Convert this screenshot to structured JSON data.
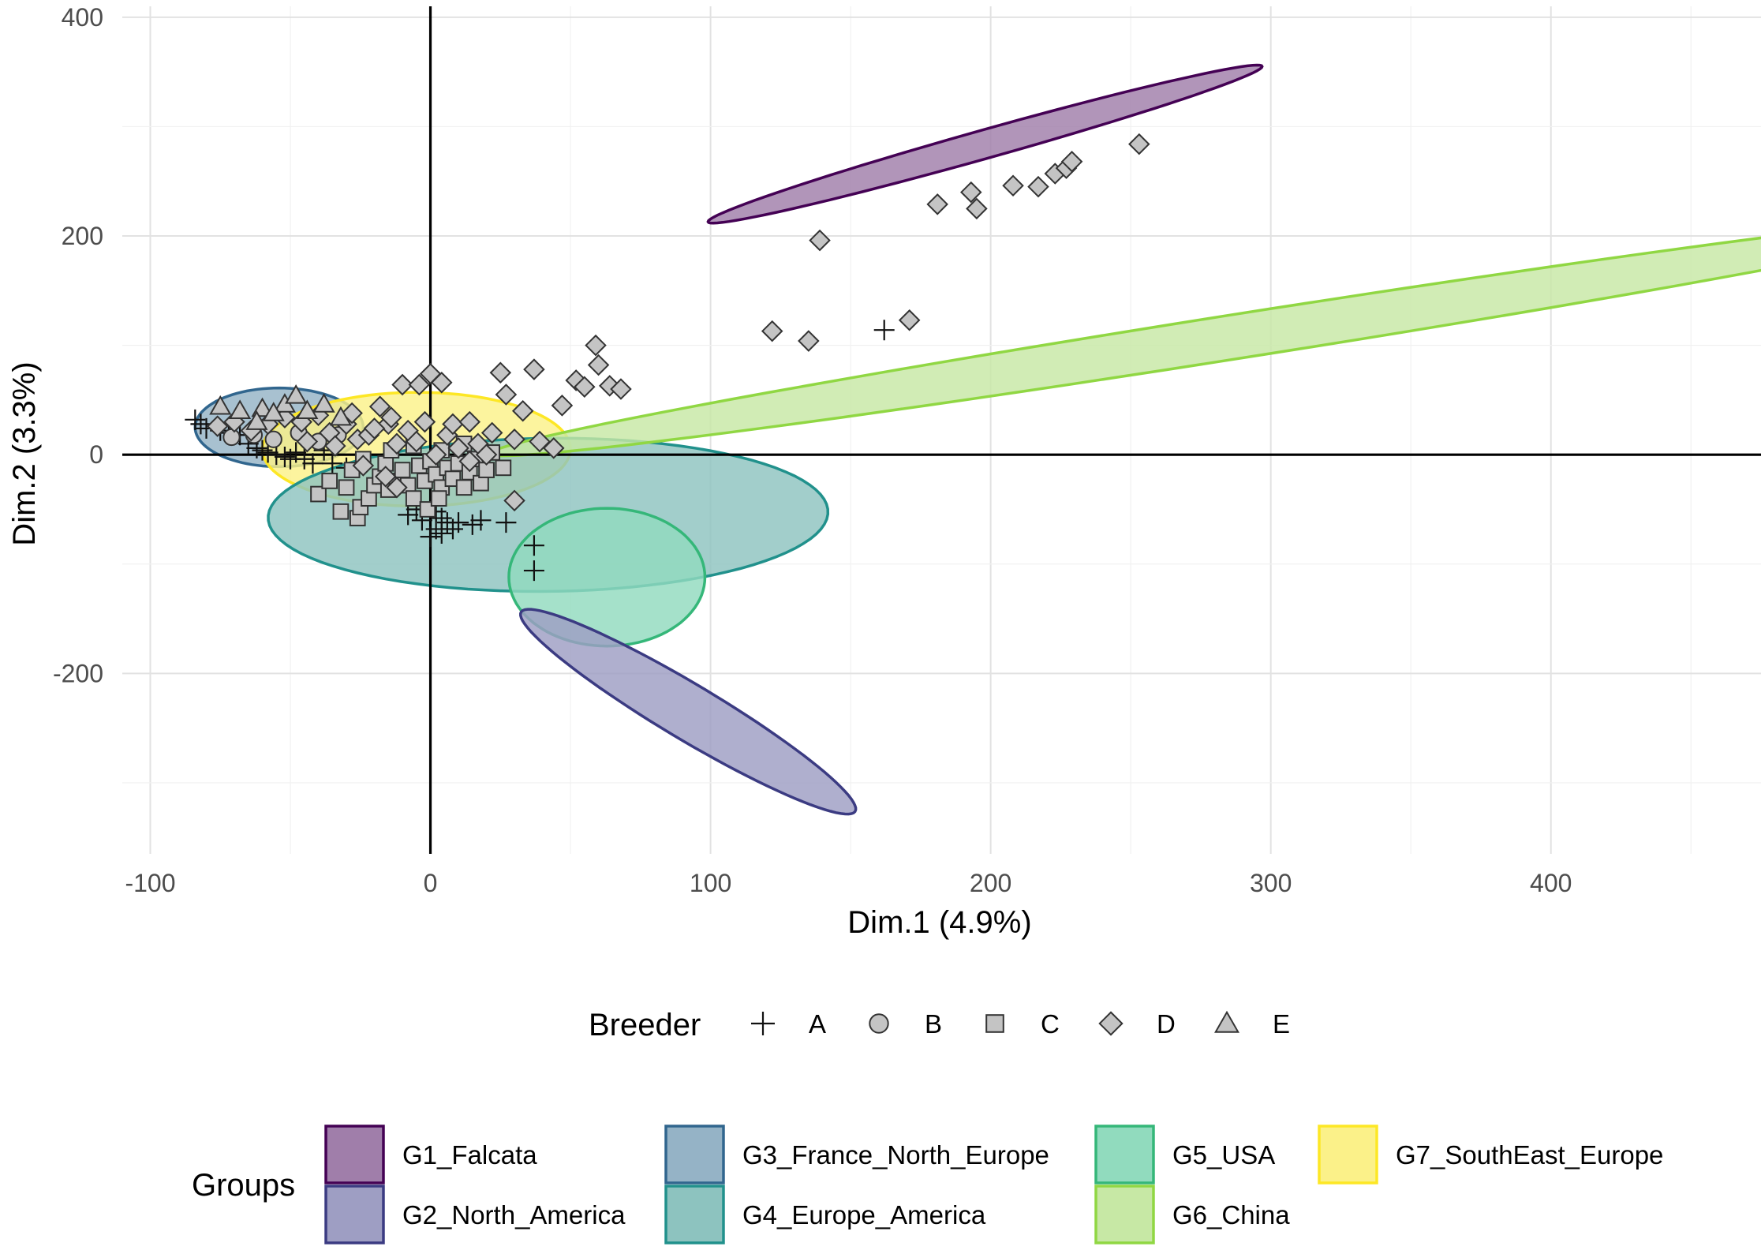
{
  "chart_data": {
    "type": "scatter",
    "title": "",
    "xlabel": "Dim.1 (4.9%)",
    "ylabel": "Dim.2 (3.3%)",
    "xlim": [
      -110,
      475
    ],
    "ylim": [
      -365,
      410
    ],
    "x_ticks": [
      -100,
      0,
      100,
      200,
      300,
      400
    ],
    "x_tick_labels": [
      "-100",
      "0",
      "100",
      "200",
      "300",
      "400"
    ],
    "y_ticks": [
      -200,
      0,
      200,
      400
    ],
    "y_tick_labels": [
      "-200",
      "0",
      "200",
      "400"
    ],
    "grid": true,
    "reference_lines": {
      "x": 0,
      "y": 0
    },
    "shape_legend": {
      "title": "Breeder",
      "position": "bottom",
      "entries": [
        {
          "label": "A",
          "shape": "plus"
        },
        {
          "label": "B",
          "shape": "circle"
        },
        {
          "label": "C",
          "shape": "square"
        },
        {
          "label": "D",
          "shape": "diamond"
        },
        {
          "label": "E",
          "shape": "triangle"
        }
      ]
    },
    "group_legend": {
      "title": "Groups",
      "position": "bottom",
      "entries": [
        {
          "label": "G1_Falcata",
          "fill": "#a07eaa",
          "stroke": "#440154"
        },
        {
          "label": "G2_North_America",
          "fill": "#9e9ec3",
          "stroke": "#3b3b82"
        },
        {
          "label": "G3_France_North_Europe",
          "fill": "#95b3c6",
          "stroke": "#31668e"
        },
        {
          "label": "G4_Europe_America",
          "fill": "#8dc3bf",
          "stroke": "#21918c"
        },
        {
          "label": "G5_USA",
          "fill": "#91dbbe",
          "stroke": "#35b779"
        },
        {
          "label": "G6_China",
          "fill": "#c7e8a5",
          "stroke": "#90d743"
        },
        {
          "label": "G7_SouthEast_Europe",
          "fill": "#fbf189",
          "stroke": "#fde725"
        }
      ]
    },
    "ellipses": [
      {
        "group": "G3_France_North_Europe",
        "cx": -54,
        "cy": 25,
        "rx": 30,
        "ry": 36,
        "angle_deg": 0
      },
      {
        "group": "G7_SouthEast_Europe",
        "cx": -5,
        "cy": 5,
        "rx": 55,
        "ry": 52,
        "angle_deg": 3
      },
      {
        "group": "G4_Europe_America",
        "cx": 42,
        "cy": -55,
        "rx": 100,
        "ry": 70,
        "angle_deg": 3
      },
      {
        "group": "G5_USA",
        "cx": 63,
        "cy": -112,
        "rx": 35,
        "ry": 63,
        "angle_deg": 0
      },
      {
        "group": "G2_North_America",
        "cx": 92,
        "cy": -235,
        "rx": 110,
        "ry": 16,
        "angle_deg": -58
      },
      {
        "group": "G1_Falcata",
        "cx": 198,
        "cy": 284,
        "rx": 122,
        "ry": 11,
        "angle_deg": 36
      },
      {
        "group": "G6_China",
        "cx": 290,
        "cy": 109,
        "rx": 290,
        "ry": 19,
        "angle_deg": 22
      }
    ],
    "series": [
      {
        "name": "A",
        "shape": "plus",
        "points": [
          [
            -84,
            32
          ],
          [
            -82,
            28
          ],
          [
            -80,
            24
          ],
          [
            -75,
            22
          ],
          [
            -72,
            20
          ],
          [
            -68,
            18
          ],
          [
            -65,
            10
          ],
          [
            -62,
            6
          ],
          [
            -60,
            4
          ],
          [
            -58,
            2
          ],
          [
            -55,
            0
          ],
          [
            -52,
            -2
          ],
          [
            -50,
            -4
          ],
          [
            -48,
            2
          ],
          [
            -45,
            -4
          ],
          [
            -42,
            -8
          ],
          [
            -38,
            4
          ],
          [
            -35,
            -8
          ],
          [
            -30,
            -12
          ],
          [
            -5,
            -50
          ],
          [
            -8,
            -55
          ],
          [
            -3,
            -60
          ],
          [
            2,
            -52
          ],
          [
            4,
            -58
          ],
          [
            6,
            -62
          ],
          [
            2,
            -68
          ],
          [
            0,
            -75
          ],
          [
            4,
            -72
          ],
          [
            8,
            -68
          ],
          [
            10,
            -62
          ],
          [
            15,
            -64
          ],
          [
            18,
            -60
          ],
          [
            27,
            -62
          ],
          [
            37,
            -83
          ],
          [
            37,
            -106
          ],
          [
            162,
            114
          ]
        ]
      },
      {
        "name": "B",
        "shape": "circle",
        "points": [
          [
            -71,
            16
          ],
          [
            -63,
            18
          ],
          [
            -56,
            14
          ],
          [
            -47,
            20
          ],
          [
            -40,
            12
          ],
          [
            -33,
            18
          ]
        ]
      },
      {
        "name": "C",
        "shape": "square",
        "points": [
          [
            -32,
            -52
          ],
          [
            -26,
            -58
          ],
          [
            -25,
            -48
          ],
          [
            -22,
            -40
          ],
          [
            -20,
            -28
          ],
          [
            -18,
            -20
          ],
          [
            -15,
            -32
          ],
          [
            -12,
            -24
          ],
          [
            -10,
            -14
          ],
          [
            -8,
            -28
          ],
          [
            -6,
            -40
          ],
          [
            -4,
            -10
          ],
          [
            -2,
            -24
          ],
          [
            0,
            -6
          ],
          [
            2,
            -18
          ],
          [
            4,
            -30
          ],
          [
            6,
            -12
          ],
          [
            8,
            -22
          ],
          [
            10,
            -8
          ],
          [
            12,
            -30
          ],
          [
            14,
            -16
          ],
          [
            16,
            -4
          ],
          [
            18,
            -26
          ],
          [
            20,
            -14
          ],
          [
            -40,
            -36
          ],
          [
            -36,
            -24
          ],
          [
            -30,
            -30
          ],
          [
            -28,
            -14
          ],
          [
            -24,
            -4
          ],
          [
            -16,
            -8
          ],
          [
            -14,
            4
          ],
          [
            -6,
            8
          ],
          [
            4,
            4
          ],
          [
            12,
            10
          ],
          [
            22,
            2
          ],
          [
            26,
            -12
          ],
          [
            -1,
            -50
          ],
          [
            3,
            -40
          ]
        ]
      },
      {
        "name": "D",
        "shape": "diamond",
        "points": [
          [
            -76,
            26
          ],
          [
            -70,
            30
          ],
          [
            -64,
            22
          ],
          [
            -58,
            28
          ],
          [
            -52,
            34
          ],
          [
            -46,
            30
          ],
          [
            -40,
            36
          ],
          [
            -36,
            20
          ],
          [
            -30,
            28
          ],
          [
            -26,
            14
          ],
          [
            -22,
            18
          ],
          [
            -18,
            44
          ],
          [
            -15,
            28
          ],
          [
            -12,
            10
          ],
          [
            -10,
            64
          ],
          [
            -8,
            22
          ],
          [
            -5,
            12
          ],
          [
            -4,
            64
          ],
          [
            0,
            74
          ],
          [
            2,
            0
          ],
          [
            4,
            66
          ],
          [
            6,
            18
          ],
          [
            10,
            6
          ],
          [
            14,
            -6
          ],
          [
            17,
            10
          ],
          [
            20,
            0
          ],
          [
            25,
            75
          ],
          [
            27,
            55
          ],
          [
            30,
            14
          ],
          [
            33,
            40
          ],
          [
            30,
            -42
          ],
          [
            37,
            78
          ],
          [
            39,
            12
          ],
          [
            44,
            6
          ],
          [
            47,
            45
          ],
          [
            52,
            68
          ],
          [
            55,
            62
          ],
          [
            59,
            100
          ],
          [
            60,
            82
          ],
          [
            64,
            63
          ],
          [
            68,
            60
          ],
          [
            -28,
            38
          ],
          [
            -20,
            24
          ],
          [
            -14,
            34
          ],
          [
            -2,
            30
          ],
          [
            8,
            28
          ],
          [
            22,
            20
          ],
          [
            -44,
            12
          ],
          [
            -34,
            8
          ],
          [
            -24,
            -10
          ],
          [
            -16,
            -20
          ],
          [
            -12,
            -30
          ],
          [
            14,
            30
          ],
          [
            122,
            113
          ],
          [
            135,
            104
          ],
          [
            171,
            123
          ],
          [
            139,
            196
          ],
          [
            181,
            229
          ],
          [
            193,
            240
          ],
          [
            195,
            225
          ],
          [
            208,
            246
          ],
          [
            217,
            245
          ],
          [
            223,
            257
          ],
          [
            227,
            262
          ],
          [
            229,
            268
          ],
          [
            253,
            284
          ]
        ]
      },
      {
        "name": "E",
        "shape": "triangle",
        "points": [
          [
            -75,
            44
          ],
          [
            -68,
            40
          ],
          [
            -60,
            42
          ],
          [
            -52,
            46
          ],
          [
            -48,
            54
          ],
          [
            -44,
            40
          ],
          [
            -38,
            46
          ],
          [
            -32,
            34
          ],
          [
            -62,
            30
          ],
          [
            -56,
            38
          ]
        ]
      }
    ]
  }
}
